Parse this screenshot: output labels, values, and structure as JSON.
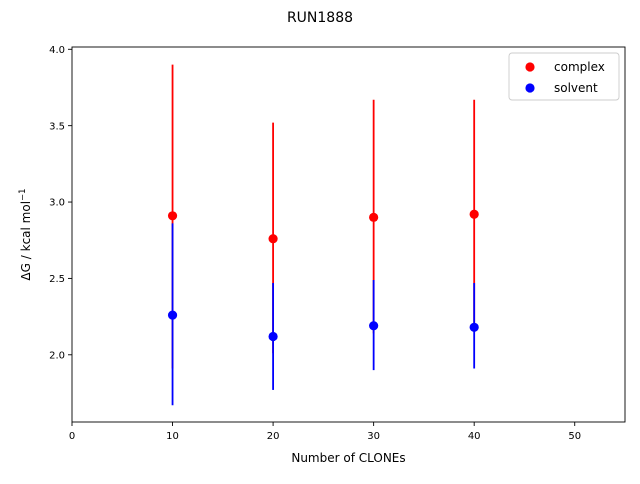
{
  "chart_data": {
    "type": "scatter",
    "title": "RUN1888",
    "xlabel": "Number of CLONEs",
    "ylabel_main": "ΔG / kcal mol",
    "ylabel_sup": "−1",
    "xlim": [
      0,
      55
    ],
    "ylim": [
      1.56,
      4.015
    ],
    "x_ticks": [
      0,
      10,
      20,
      30,
      40,
      50
    ],
    "y_ticks": [
      2.0,
      2.5,
      3.0,
      3.5,
      4.0
    ],
    "x_tick_labels": [
      "0",
      "10",
      "20",
      "30",
      "40",
      "50"
    ],
    "y_tick_labels": [
      "2.0",
      "2.5",
      "3.0",
      "3.5",
      "4.0"
    ],
    "legend_position": "top-right",
    "series": [
      {
        "name": "complex",
        "color": "#ff0000",
        "points": [
          {
            "x": 10,
            "y": 2.91,
            "err_low": 1.91,
            "err_high": 3.9
          },
          {
            "x": 20,
            "y": 2.76,
            "err_low": 2.01,
            "err_high": 3.52
          },
          {
            "x": 30,
            "y": 2.9,
            "err_low": 2.14,
            "err_high": 3.67
          },
          {
            "x": 40,
            "y": 2.92,
            "err_low": 2.17,
            "err_high": 3.67
          }
        ]
      },
      {
        "name": "solvent",
        "color": "#0000ff",
        "points": [
          {
            "x": 10,
            "y": 2.26,
            "err_low": 1.67,
            "err_high": 2.86
          },
          {
            "x": 20,
            "y": 2.12,
            "err_low": 1.77,
            "err_high": 2.47
          },
          {
            "x": 30,
            "y": 2.19,
            "err_low": 1.9,
            "err_high": 2.49
          },
          {
            "x": 40,
            "y": 2.18,
            "err_low": 1.91,
            "err_high": 2.47
          }
        ]
      }
    ],
    "grid": false
  }
}
